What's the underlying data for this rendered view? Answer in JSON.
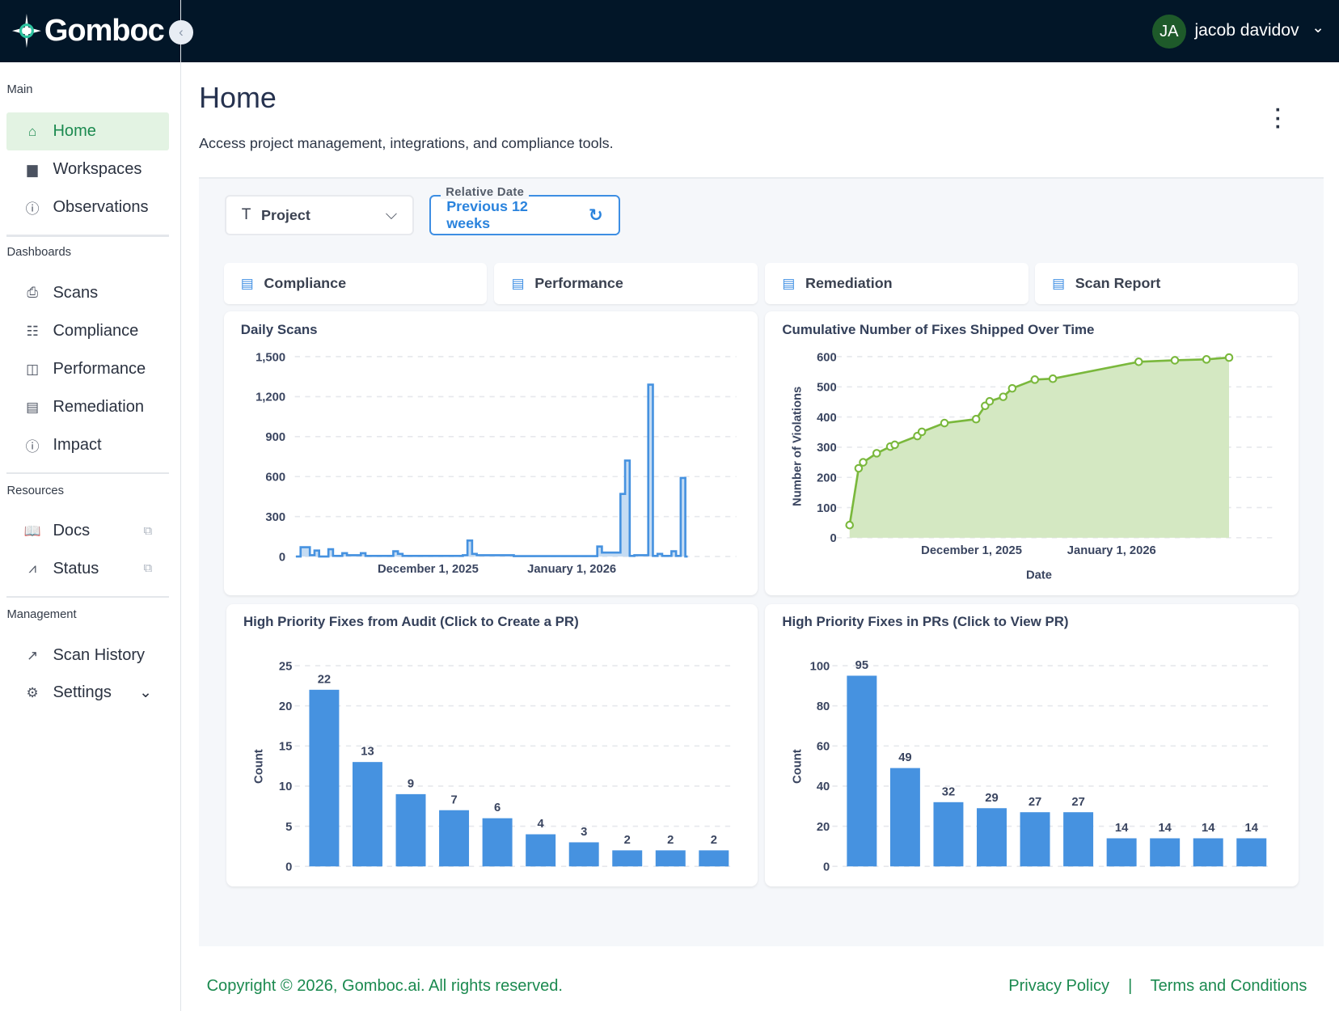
{
  "header": {
    "brand": "Gomboc",
    "user_initials": "JA",
    "user_name": "jacob davidov"
  },
  "sidebar": {
    "sections": [
      {
        "label": "Main",
        "items": [
          {
            "label": "Home",
            "active": true
          },
          {
            "label": "Workspaces"
          },
          {
            "label": "Observations"
          }
        ]
      },
      {
        "label": "Dashboards",
        "items": [
          {
            "label": "Scans"
          },
          {
            "label": "Compliance"
          },
          {
            "label": "Performance"
          },
          {
            "label": "Remediation"
          },
          {
            "label": "Impact"
          }
        ]
      },
      {
        "label": "Resources",
        "items": [
          {
            "label": "Docs"
          },
          {
            "label": "Status"
          }
        ]
      },
      {
        "label": "Management",
        "items": [
          {
            "label": "Scan History"
          },
          {
            "label": "Settings"
          }
        ]
      }
    ]
  },
  "page": {
    "title": "Home",
    "subtitle": "Access project management, integrations, and compliance tools."
  },
  "filters": {
    "project_label": "Project",
    "relative_date_label": "Relative Date",
    "relative_date_value": "Previous 12 weeks"
  },
  "tabs": [
    {
      "label": "Compliance"
    },
    {
      "label": "Performance"
    },
    {
      "label": "Remediation"
    },
    {
      "label": "Scan Report"
    }
  ],
  "colors": {
    "accent": "#1c8a50",
    "bar": "#4692e0",
    "line_green": "#7ab83c",
    "header_bg": "#021628"
  },
  "footer": {
    "copyright": "Copyright © 2026, Gomboc.ai. All rights reserved.",
    "privacy": "Privacy Policy",
    "separator": "|",
    "terms": "Terms and Conditions"
  },
  "chart_data": [
    {
      "type": "area",
      "title": "Daily Scans",
      "xlabel": "",
      "ylabel": "",
      "start_date": "2025-11-03",
      "x_tick_labels": [
        {
          "day_index": 28,
          "label": "December 1, 2025"
        },
        {
          "day_index": 59,
          "label": "January 1, 2026"
        }
      ],
      "y_ticks": [
        "0",
        "300",
        "600",
        "900",
        "1,200",
        "1,500"
      ],
      "ylim": [
        0,
        1500
      ],
      "values": [
        0,
        70,
        70,
        10,
        45,
        0,
        0,
        55,
        5,
        5,
        25,
        10,
        10,
        10,
        25,
        5,
        5,
        5,
        5,
        5,
        5,
        40,
        20,
        5,
        5,
        5,
        5,
        5,
        5,
        5,
        5,
        5,
        5,
        5,
        5,
        5,
        10,
        120,
        20,
        10,
        10,
        10,
        10,
        10,
        10,
        10,
        10,
        3,
        3,
        3,
        3,
        3,
        3,
        3,
        3,
        3,
        3,
        3,
        3,
        3,
        3,
        3,
        3,
        3,
        3,
        75,
        30,
        30,
        30,
        30,
        470,
        720,
        5,
        10,
        10,
        10,
        1290,
        5,
        20,
        5,
        5,
        40,
        5,
        590,
        0
      ],
      "grid": true
    },
    {
      "type": "line",
      "title": "Cumulative Number of Fixes Shipped Over Time",
      "xlabel": "Date",
      "ylabel": "Number of Violations",
      "ylim": [
        0,
        600
      ],
      "y_ticks": [
        "0",
        "100",
        "200",
        "300",
        "400",
        "500",
        "600"
      ],
      "x_tick_labels": [
        {
          "day_offset": 0,
          "label": "December 1, 2025"
        },
        {
          "day_offset": 31,
          "label": "January 1, 2026"
        }
      ],
      "points": [
        {
          "day_offset": -27,
          "y": 42
        },
        {
          "day_offset": -25,
          "y": 230
        },
        {
          "day_offset": -24,
          "y": 250
        },
        {
          "day_offset": -21,
          "y": 280
        },
        {
          "day_offset": -18,
          "y": 302
        },
        {
          "day_offset": -17,
          "y": 308
        },
        {
          "day_offset": -12,
          "y": 337
        },
        {
          "day_offset": -11,
          "y": 351
        },
        {
          "day_offset": -6,
          "y": 380
        },
        {
          "day_offset": 1,
          "y": 393
        },
        {
          "day_offset": 3,
          "y": 437
        },
        {
          "day_offset": 4,
          "y": 452
        },
        {
          "day_offset": 7,
          "y": 467
        },
        {
          "day_offset": 9,
          "y": 495
        },
        {
          "day_offset": 14,
          "y": 524
        },
        {
          "day_offset": 18,
          "y": 527
        },
        {
          "day_offset": 37,
          "y": 583
        },
        {
          "day_offset": 45,
          "y": 588
        },
        {
          "day_offset": 52,
          "y": 591
        },
        {
          "day_offset": 57,
          "y": 597
        }
      ],
      "grid": true
    },
    {
      "type": "bar",
      "title": "High Priority Fixes from Audit (Click to Create a PR)",
      "xlabel": "",
      "ylabel": "Count",
      "ylim": [
        0,
        25
      ],
      "y_ticks": [
        "0",
        "5",
        "10",
        "15",
        "20",
        "25"
      ],
      "values": [
        22,
        13,
        9,
        7,
        6,
        4,
        3,
        2,
        2,
        2
      ]
    },
    {
      "type": "bar",
      "title": "High Priority Fixes in PRs (Click to View PR)",
      "xlabel": "",
      "ylabel": "Count",
      "ylim": [
        0,
        100
      ],
      "y_ticks": [
        "0",
        "20",
        "40",
        "60",
        "80",
        "100"
      ],
      "values": [
        95,
        49,
        32,
        29,
        27,
        27,
        14,
        14,
        14,
        14
      ]
    }
  ]
}
